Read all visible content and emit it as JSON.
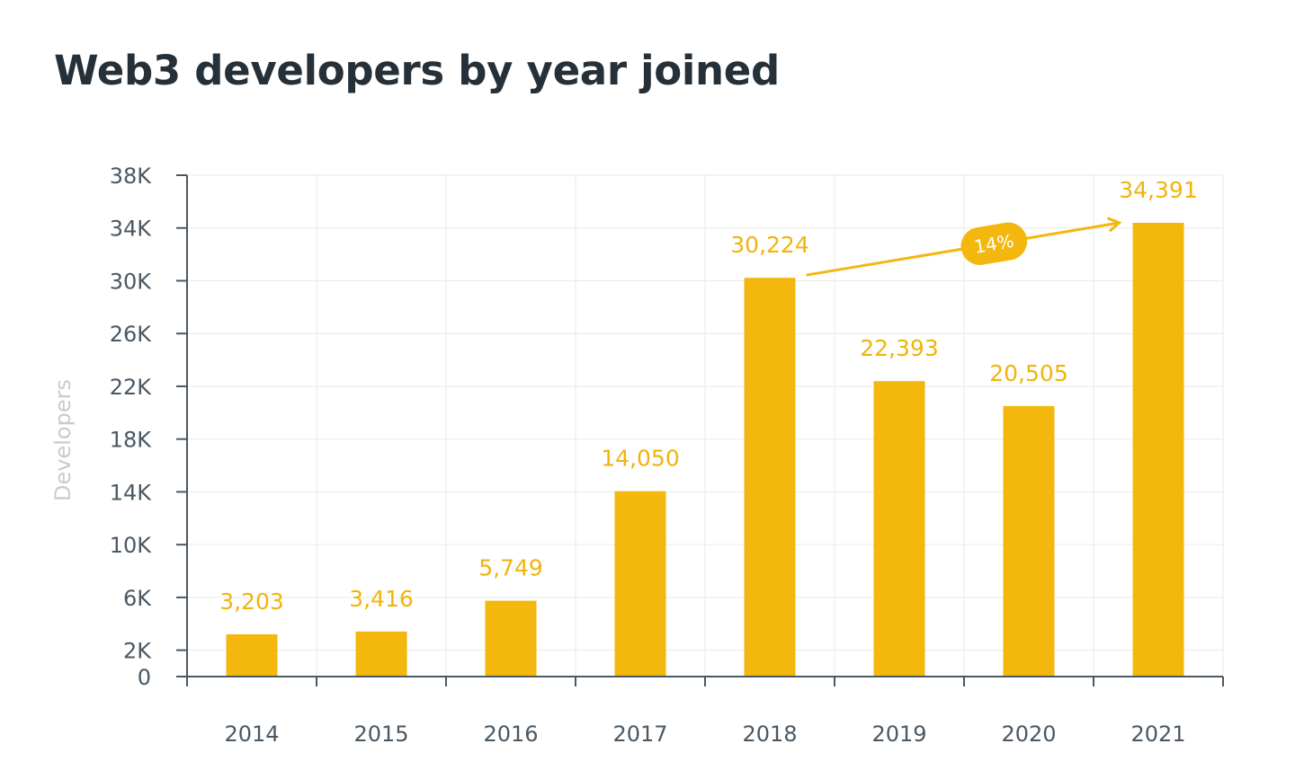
{
  "chart_data": {
    "type": "bar",
    "title": "Web3 developers by year joined",
    "ylabel": "Developers",
    "xlabel": "",
    "categories": [
      "2014",
      "2015",
      "2016",
      "2017",
      "2018",
      "2019",
      "2020",
      "2021"
    ],
    "values": [
      3203,
      3416,
      5749,
      14050,
      30224,
      22393,
      20505,
      34391
    ],
    "value_labels": [
      "3,203",
      "3,416",
      "5,749",
      "14,050",
      "30,224",
      "22,393",
      "20,505",
      "34,391"
    ],
    "ylim": [
      0,
      38000
    ],
    "yticks": [
      0,
      2000,
      6000,
      10000,
      14000,
      18000,
      22000,
      26000,
      30000,
      34000,
      38000
    ],
    "ytick_labels": [
      "0",
      "2K",
      "6K",
      "10K",
      "14K",
      "18K",
      "22K",
      "26K",
      "30K",
      "34K",
      "38K"
    ],
    "grid": true,
    "legend": "none",
    "annotation": {
      "label": "14%",
      "from": "2018",
      "to": "2021"
    },
    "colors": {
      "bar": "#f3b70d",
      "data_label": "#f1b40c",
      "title": "#253038",
      "axis": "#4a5863",
      "axis_title": "#c5ccd2",
      "grid": "#e9e9e9"
    }
  }
}
